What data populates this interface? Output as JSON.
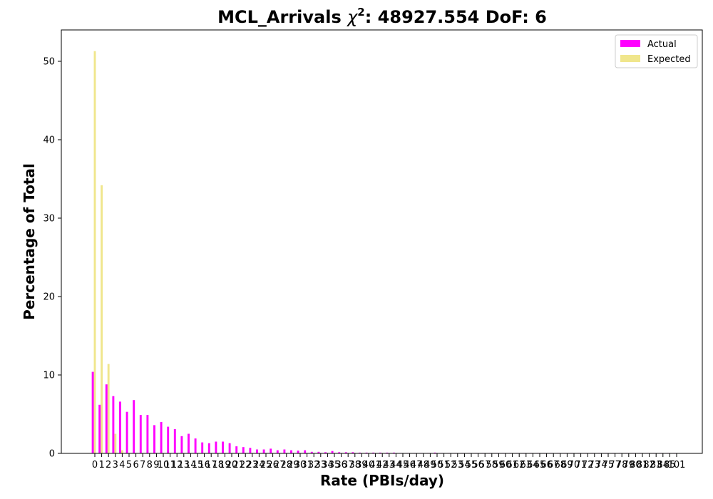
{
  "chart_data": {
    "type": "bar",
    "title_prefix": "MCL_Arrivals ",
    "title_chi": "χ",
    "title_sup": "2",
    "title_suffix": ": 48927.554 DoF: 6",
    "xlabel": "Rate (PBIs/day)",
    "ylabel": "Percentage of Total",
    "ylim": [
      0,
      54
    ],
    "yticks": [
      0,
      10,
      20,
      30,
      40,
      50
    ],
    "legend_position": "top-right",
    "x": [
      0,
      1,
      2,
      3,
      4,
      5,
      6,
      7,
      8,
      9,
      10,
      11,
      12,
      13,
      14,
      15,
      16,
      17,
      18,
      19,
      20,
      21,
      22,
      23,
      24,
      25,
      26,
      27,
      28,
      29,
      30,
      31,
      32,
      33,
      34,
      35,
      36,
      37,
      38,
      39,
      40,
      41,
      42,
      43,
      44,
      45,
      46,
      47,
      48,
      49,
      50,
      51,
      52,
      53,
      54,
      55,
      56,
      57,
      58,
      59,
      60,
      61,
      62,
      63,
      64,
      65,
      66,
      67,
      68,
      69,
      70,
      71,
      72,
      73,
      74,
      75,
      76,
      77,
      78,
      79,
      80,
      81,
      82,
      83,
      84,
      85
    ],
    "x_tick_labels": [
      "0",
      "1",
      "2",
      "3",
      "4",
      "5",
      "6",
      "7",
      "8",
      "9",
      "10",
      "11",
      "12",
      "13",
      "14",
      "15",
      "16",
      "17",
      "18",
      "19",
      "20",
      "21",
      "22",
      "23",
      "24",
      "25",
      "26",
      "27",
      "28",
      "29",
      "30",
      "31",
      "32",
      "33",
      "34",
      "35",
      "36",
      "37",
      "38",
      "39",
      "40",
      "41",
      "42",
      "43",
      "44",
      "45",
      "46",
      "47",
      "48",
      "49",
      "50",
      "51",
      "52",
      "53",
      "54",
      "55",
      "56",
      "57",
      "58",
      "59",
      "60",
      "61",
      "62",
      "63",
      "64",
      "65",
      "66",
      "67",
      "68",
      "69",
      "70",
      "71",
      "72",
      "73",
      "74",
      "75",
      "77",
      "78",
      "79",
      "80",
      "81",
      "82",
      "83",
      "84",
      "85",
      "101"
    ],
    "series": [
      {
        "name": "Actual",
        "color": "#ff00ff",
        "values": [
          10.4,
          6.2,
          8.8,
          7.3,
          6.6,
          5.3,
          6.8,
          4.9,
          4.9,
          3.6,
          4.0,
          3.4,
          3.1,
          2.2,
          2.5,
          1.9,
          1.4,
          1.3,
          1.5,
          1.5,
          1.3,
          0.9,
          0.8,
          0.7,
          0.5,
          0.5,
          0.6,
          0.4,
          0.5,
          0.4,
          0.35,
          0.4,
          0.2,
          0.2,
          0.15,
          0.3,
          0.15,
          0.15,
          0.15,
          0.1,
          0.1,
          0.1,
          0.1,
          0.1,
          0.1,
          0.05,
          0.05,
          0.05,
          0.05,
          0.05,
          0.1,
          0.05,
          0.05,
          0.05,
          0.05,
          0.05,
          0.05,
          0.05,
          0.05,
          0.05,
          0.05,
          0.05,
          0.05,
          0.05,
          0.05,
          0.05,
          0.05,
          0.05,
          0.05,
          0.05,
          0.05,
          0.05,
          0.05,
          0.05,
          0.05,
          0.05,
          0.05,
          0.05,
          0.05,
          0.05,
          0.05,
          0.05,
          0.05,
          0.05,
          0.05,
          0.05
        ]
      },
      {
        "name": "Expected",
        "color": "#f0e68c",
        "values": [
          51.3,
          34.2,
          11.4,
          2.5,
          0.4,
          0.05,
          0,
          0,
          0,
          0,
          0,
          0,
          0,
          0,
          0,
          0,
          0,
          0,
          0,
          0,
          0,
          0,
          0,
          0,
          0,
          0,
          0,
          0,
          0,
          0,
          0,
          0,
          0,
          0,
          0,
          0,
          0,
          0,
          0,
          0,
          0,
          0,
          0,
          0,
          0,
          0,
          0,
          0,
          0,
          0,
          0,
          0,
          0,
          0,
          0,
          0,
          0,
          0,
          0,
          0,
          0,
          0,
          0,
          0,
          0,
          0,
          0,
          0,
          0,
          0,
          0,
          0,
          0,
          0,
          0,
          0,
          0,
          0,
          0,
          0,
          0,
          0,
          0,
          0,
          0,
          0
        ]
      }
    ]
  }
}
